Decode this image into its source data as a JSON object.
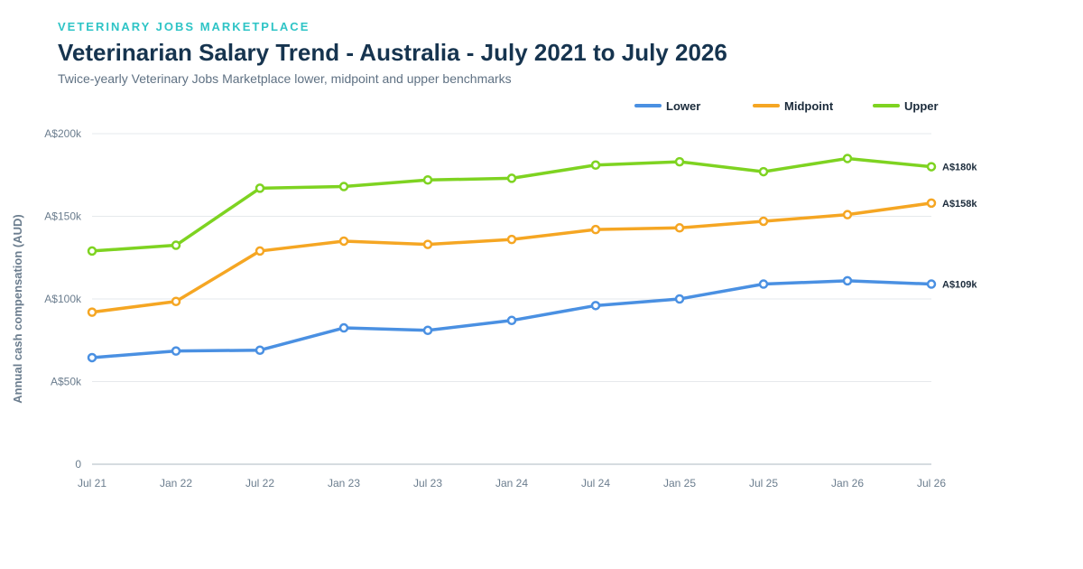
{
  "header": {
    "brand": "VETERINARY JOBS MARKETPLACE",
    "title": "Veterinarian Salary Trend - Australia - July 2021 to July 2026",
    "subtitle": "Twice-yearly Veterinary Jobs Marketplace lower, midpoint and upper benchmarks"
  },
  "chart_data": {
    "type": "line",
    "title": "Veterinarian Salary Trend - Australia - July 2021 to July 2026",
    "subtitle": "Twice-yearly Veterinary Jobs Marketplace lower, midpoint and upper benchmarks",
    "xlabel": "",
    "ylabel": "Annual cash compensation (AUD)",
    "categories": [
      "Jul 21",
      "Jan 22",
      "Jul 22",
      "Jan 23",
      "Jul 23",
      "Jan 24",
      "Jul 24",
      "Jan 25",
      "Jul 25",
      "Jan 26",
      "Jul 26"
    ],
    "ylim": [
      0,
      200000
    ],
    "y_ticks": [
      0,
      50000,
      100000,
      150000,
      200000
    ],
    "y_tick_labels": [
      "0",
      "A$50k",
      "A$100k",
      "A$150k",
      "A$200k"
    ],
    "grid": true,
    "legend_position": "top-right",
    "series": [
      {
        "name": "Lower",
        "color": "#4a90e2",
        "values": [
          64500,
          68500,
          69000,
          82500,
          81000,
          87000,
          96000,
          100000,
          109000,
          111000,
          109000
        ],
        "end_label": "A$109k"
      },
      {
        "name": "Midpoint",
        "color": "#f5a623",
        "values": [
          92000,
          98500,
          129000,
          135000,
          133000,
          136000,
          142000,
          143000,
          147000,
          151000,
          158000
        ],
        "end_label": "A$158k"
      },
      {
        "name": "Upper",
        "color": "#7ed321",
        "values": [
          129000,
          132500,
          167000,
          168000,
          172000,
          173000,
          181000,
          183000,
          177000,
          185000,
          180000
        ],
        "end_label": "A$180k"
      }
    ]
  }
}
